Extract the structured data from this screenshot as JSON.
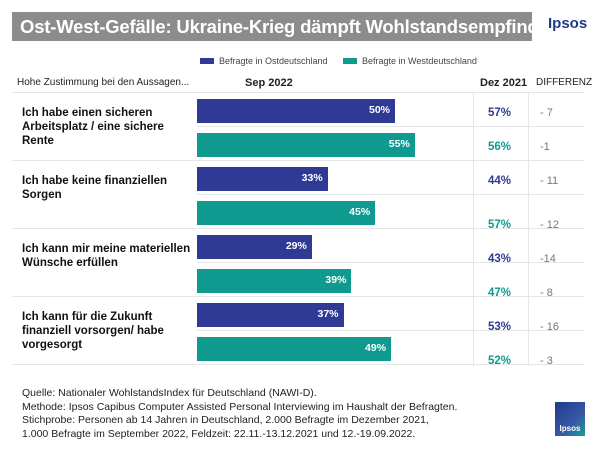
{
  "title": "Ost-West-Gefälle: Ukraine-Krieg dämpft Wohlstandsempfinden",
  "brand": "Ipsos",
  "chart_data": {
    "type": "bar",
    "orientation": "horizontal",
    "column_headers": {
      "label": "Hohe Zustimmung  bei den Aussagen...",
      "current": "Sep 2022",
      "previous": "Dez 2021",
      "difference": "DIFFERENZ"
    },
    "legend": [
      "Befragte  in Ostdeutschland",
      "Befragte  in Westdeutschland"
    ],
    "legend_placement": "top",
    "colors": {
      "ost": "#2e3a94",
      "west": "#0e9a8f"
    },
    "xlim": [
      0,
      100
    ],
    "categories": [
      "Ich habe einen sicheren Arbeitsplatz / eine sichere Rente",
      "Ich habe keine finanziellen Sorgen",
      "Ich kann mir meine materiellen Wünsche erfüllen",
      "Ich kann für die Zukunft finanziell vorsorgen/ habe vorgesorgt"
    ],
    "series": [
      {
        "name": "Befragte  in Ostdeutschland",
        "values": [
          50,
          33,
          29,
          37
        ],
        "labels": [
          "50%",
          "33%",
          "29%",
          "37%"
        ],
        "dez2021": [
          "57%",
          "44%",
          "43%",
          "53%"
        ],
        "diff": [
          "- 7",
          "- 11",
          "-14",
          "- 16"
        ]
      },
      {
        "name": "Befragte  in Westdeutschland",
        "values": [
          55,
          45,
          39,
          49
        ],
        "labels": [
          "55%",
          "45%",
          "39%",
          "49%"
        ],
        "dez2021": [
          "56%",
          "57%",
          "47%",
          "52%"
        ],
        "diff": [
          "-1",
          "- 12",
          "- 8",
          "- 3"
        ]
      }
    ]
  },
  "footer": [
    "Quelle: Nationaler WohlstandsIndex für Deutschland (NAWI-D).",
    "Methode: Ipsos Capibus Computer Assisted Personal Interviewing im Haushalt  der Befragten.",
    "Stichprobe: Personen ab 14 Jahren in Deutschland, 2.000 Befragte im Dezember 2021,",
    "1.000 Befragte im September 2022,  Feldzeit:  22.11.-13.12.2021 und 12.-19.09.2022."
  ]
}
